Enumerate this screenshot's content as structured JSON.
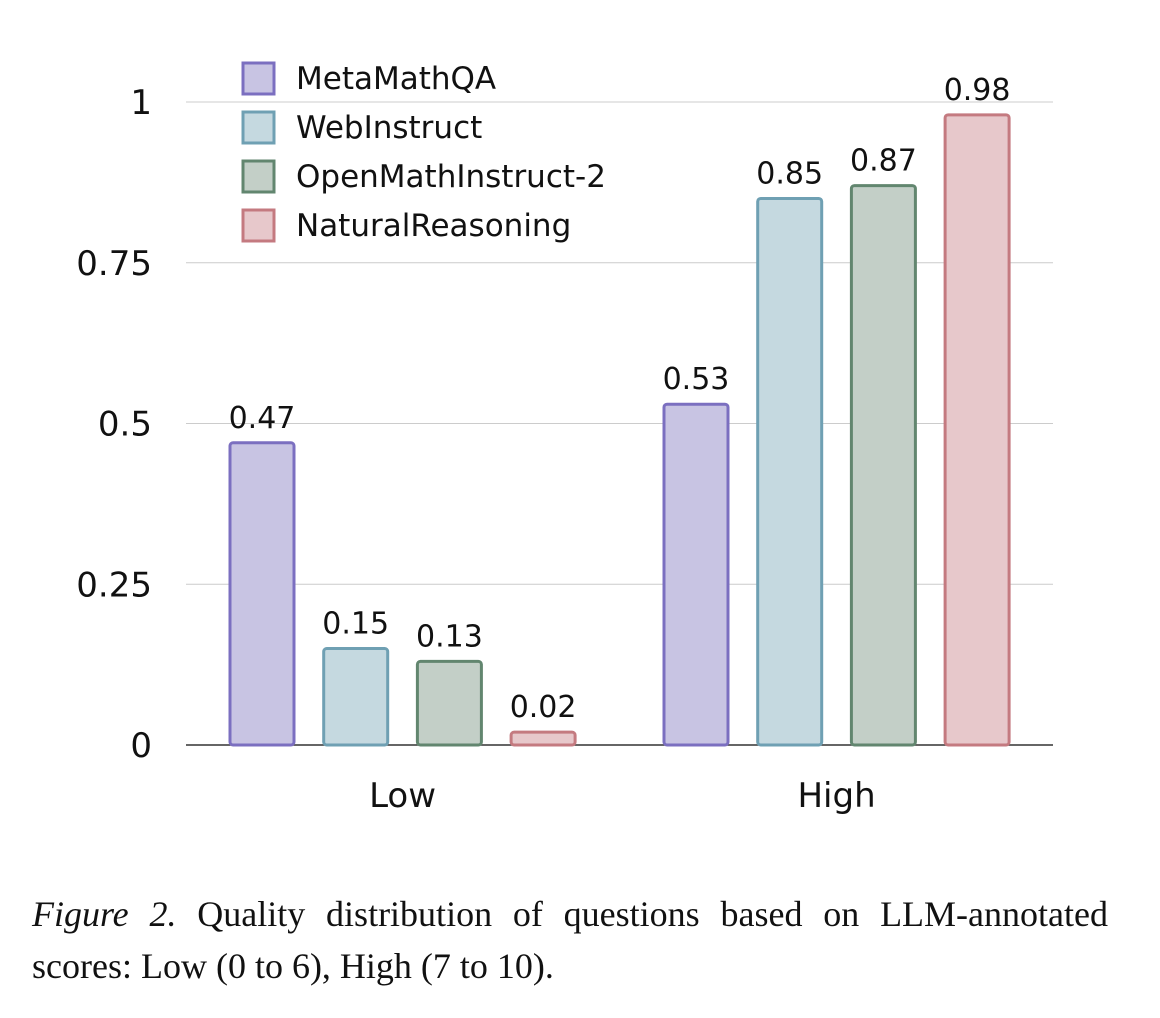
{
  "chart_data": {
    "type": "bar",
    "categories": [
      "Low",
      "High"
    ],
    "series": [
      {
        "name": "MetaMathQA",
        "values": [
          0.47,
          0.53
        ],
        "fill": "#c8c4e3",
        "stroke": "#7b6fc0"
      },
      {
        "name": "WebInstruct",
        "values": [
          0.15,
          0.85
        ],
        "fill": "#c5d9e0",
        "stroke": "#6fa0b3"
      },
      {
        "name": "OpenMathInstruct-2",
        "values": [
          0.13,
          0.87
        ],
        "fill": "#c3cfc7",
        "stroke": "#62866f"
      },
      {
        "name": "NaturalReasoning",
        "values": [
          0.02,
          0.98
        ],
        "fill": "#e7c8cb",
        "stroke": "#c47a80"
      }
    ],
    "data_labels": [
      [
        "0.47",
        "0.53"
      ],
      [
        "0.15",
        "0.85"
      ],
      [
        "0.13",
        "0.87"
      ],
      [
        "0.02",
        "0.98"
      ]
    ],
    "ylim": [
      0,
      1
    ],
    "yticks": [
      0,
      0.25,
      0.5,
      0.75,
      1
    ],
    "ytick_labels": [
      "0",
      "0.25",
      "0.5",
      "0.75",
      "1"
    ],
    "grid": true,
    "legend_position": "top-left"
  },
  "caption": {
    "label": "Figure 2.",
    "text": "Quality distribution of questions based on LLM-annotated scores: Low (0 to 6), High (7 to 10)."
  }
}
